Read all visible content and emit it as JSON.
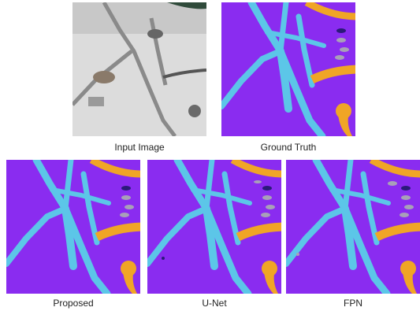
{
  "panels": [
    {
      "caption": "Input Image"
    },
    {
      "caption": "Ground Truth"
    },
    {
      "caption": "Proposed"
    },
    {
      "caption": "U-Net"
    },
    {
      "caption": "FPN"
    }
  ]
}
